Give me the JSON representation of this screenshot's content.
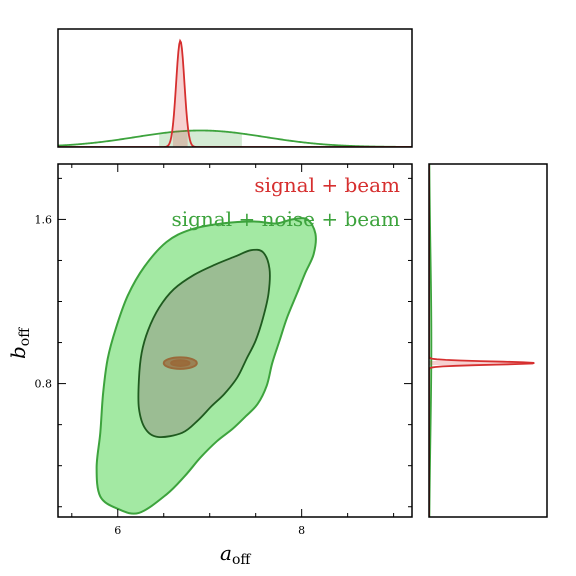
{
  "chart_data": {
    "type": "contour",
    "colors": {
      "signal_beam": "#d62f2f",
      "signal_noise_beam": "#3da33d",
      "outer_fill": "#a3e9a3",
      "inner_fill": "#9bbd93",
      "inner_edge": "#1f5a1f",
      "small_fill": "#9a6a3a"
    },
    "legend": {
      "items": [
        "signal + beam",
        "signal + noise + beam"
      ],
      "placement": "top-right"
    },
    "main": {
      "xlim": [
        5.35,
        9.2
      ],
      "ylim": [
        0.15,
        1.87
      ],
      "xticks_major": [
        6,
        8
      ],
      "xtick_labels": [
        "6",
        "8"
      ],
      "yticks_major": [
        0.8,
        1.6
      ],
      "ytick_labels": [
        "0.8",
        "1.6"
      ],
      "xlabel_main": "a",
      "xlabel_sub": "off",
      "ylabel_main": "b",
      "ylabel_sub": "off",
      "contours": [
        {
          "series": "signal + noise + beam",
          "level": "outer",
          "center": [
            6.9,
            0.97
          ],
          "points": [
            [
              6.23,
              0.17
            ],
            [
              6.0,
              0.19
            ],
            [
              5.81,
              0.25
            ],
            [
              5.77,
              0.39
            ],
            [
              5.81,
              0.56
            ],
            [
              5.84,
              0.75
            ],
            [
              5.89,
              0.92
            ],
            [
              5.98,
              1.07
            ],
            [
              6.11,
              1.23
            ],
            [
              6.29,
              1.37
            ],
            [
              6.53,
              1.49
            ],
            [
              6.79,
              1.55
            ],
            [
              7.13,
              1.58
            ],
            [
              7.48,
              1.59
            ],
            [
              7.72,
              1.58
            ],
            [
              7.9,
              1.6
            ],
            [
              8.06,
              1.6
            ],
            [
              8.15,
              1.53
            ],
            [
              8.13,
              1.43
            ],
            [
              8.04,
              1.34
            ],
            [
              7.95,
              1.24
            ],
            [
              7.84,
              1.12
            ],
            [
              7.76,
              1.01
            ],
            [
              7.68,
              0.9
            ],
            [
              7.62,
              0.79
            ],
            [
              7.52,
              0.7
            ],
            [
              7.39,
              0.64
            ],
            [
              7.25,
              0.58
            ],
            [
              7.08,
              0.52
            ],
            [
              6.9,
              0.44
            ],
            [
              6.73,
              0.35
            ],
            [
              6.53,
              0.26
            ]
          ]
        },
        {
          "series": "signal + noise + beam",
          "level": "inner",
          "center": [
            6.9,
            1.02
          ],
          "points": [
            [
              6.44,
              0.54
            ],
            [
              6.3,
              0.58
            ],
            [
              6.23,
              0.68
            ],
            [
              6.23,
              0.82
            ],
            [
              6.26,
              0.95
            ],
            [
              6.33,
              1.06
            ],
            [
              6.45,
              1.17
            ],
            [
              6.61,
              1.26
            ],
            [
              6.83,
              1.33
            ],
            [
              7.06,
              1.38
            ],
            [
              7.28,
              1.42
            ],
            [
              7.45,
              1.45
            ],
            [
              7.58,
              1.44
            ],
            [
              7.65,
              1.36
            ],
            [
              7.64,
              1.24
            ],
            [
              7.58,
              1.12
            ],
            [
              7.5,
              1.01
            ],
            [
              7.4,
              0.92
            ],
            [
              7.3,
              0.83
            ],
            [
              7.16,
              0.75
            ],
            [
              7.02,
              0.69
            ],
            [
              6.87,
              0.62
            ],
            [
              6.7,
              0.56
            ]
          ]
        },
        {
          "series": "signal + beam",
          "level": "outer",
          "center": [
            6.68,
            0.9
          ],
          "rx": 0.18,
          "ry": 0.028
        },
        {
          "series": "signal + beam",
          "level": "inner",
          "center": [
            6.68,
            0.9
          ],
          "rx": 0.1,
          "ry": 0.014
        }
      ]
    },
    "top_marginal": {
      "xlim": [
        5.35,
        9.2
      ],
      "series": [
        {
          "name": "signal + beam",
          "type": "gaussian",
          "mean": 6.68,
          "sigma": 0.045,
          "peak": 0.9,
          "band": [
            6.6,
            6.76
          ]
        },
        {
          "name": "signal + noise + beam",
          "type": "gaussian",
          "mean": 6.9,
          "sigma": 0.7,
          "peak": 0.14,
          "band": [
            6.45,
            7.35
          ]
        }
      ]
    },
    "right_marginal": {
      "ylim": [
        0.15,
        1.87
      ],
      "series": [
        {
          "name": "signal + beam",
          "type": "gaussian",
          "mean": 0.9,
          "sigma": 0.008,
          "peak": 0.9,
          "band": [
            0.89,
            0.91
          ]
        },
        {
          "name": "signal + noise + beam",
          "type": "gaussian",
          "mean": 1.0,
          "sigma": 0.45,
          "peak": 0.02,
          "band": [
            0.7,
            1.3
          ]
        }
      ]
    }
  }
}
